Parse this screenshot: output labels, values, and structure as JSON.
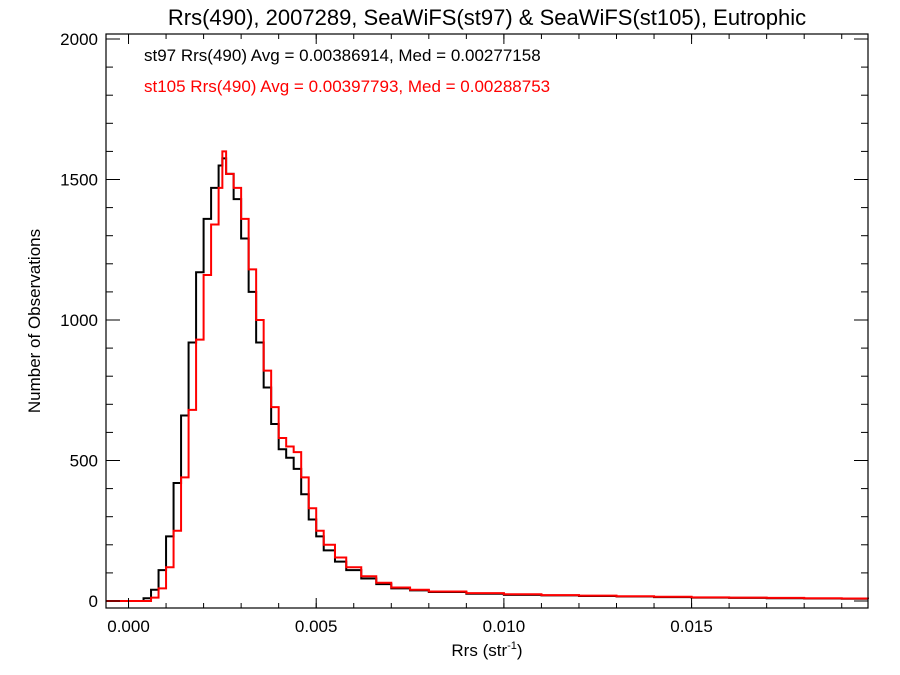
{
  "chart_data": {
    "type": "line",
    "step": true,
    "title": "Rrs(490), 2007289, SeaWiFS(st97) & SeaWiFS(st105), Eutrophic",
    "xlabel_main": "Rrs (str",
    "xlabel_sup": "-1",
    "xlabel_close": ")",
    "ylabel": "Number of Observations",
    "xlim": [
      -0.0006,
      0.0197
    ],
    "ylim": [
      0,
      2000
    ],
    "x_ticks": [
      0.0,
      0.005,
      0.01,
      0.015
    ],
    "x_tick_labels": [
      "0.000",
      "0.005",
      "0.010",
      "0.015"
    ],
    "y_ticks": [
      0,
      500,
      1000,
      1500,
      2000
    ],
    "y_tick_labels": [
      "0",
      "500",
      "1000",
      "1500",
      "2000"
    ],
    "grid": false,
    "legend_position": "top-left",
    "legend": [
      {
        "text": "st97 Rrs(490) Avg = 0.00386914, Med = 0.00277158",
        "color": "#000000"
      },
      {
        "text": "st105 Rrs(490) Avg = 0.00397793, Med = 0.00288753",
        "color": "#ff0000"
      }
    ],
    "series": [
      {
        "color": "#000000",
        "points": [
          [
            -0.0006,
            0
          ],
          [
            0.0,
            0
          ],
          [
            0.0004,
            10
          ],
          [
            0.0006,
            40
          ],
          [
            0.0008,
            110
          ],
          [
            0.001,
            230
          ],
          [
            0.0012,
            420
          ],
          [
            0.0014,
            660
          ],
          [
            0.0016,
            920
          ],
          [
            0.0018,
            1170
          ],
          [
            0.002,
            1360
          ],
          [
            0.0022,
            1470
          ],
          [
            0.0024,
            1550
          ],
          [
            0.0025,
            1575
          ],
          [
            0.0026,
            1520
          ],
          [
            0.0028,
            1430
          ],
          [
            0.003,
            1290
          ],
          [
            0.0032,
            1100
          ],
          [
            0.0034,
            920
          ],
          [
            0.0036,
            760
          ],
          [
            0.0038,
            630
          ],
          [
            0.004,
            540
          ],
          [
            0.0042,
            510
          ],
          [
            0.0044,
            470
          ],
          [
            0.0046,
            380
          ],
          [
            0.0048,
            290
          ],
          [
            0.005,
            230
          ],
          [
            0.0052,
            180
          ],
          [
            0.0055,
            140
          ],
          [
            0.0058,
            110
          ],
          [
            0.0062,
            80
          ],
          [
            0.0066,
            60
          ],
          [
            0.007,
            45
          ],
          [
            0.0075,
            38
          ],
          [
            0.008,
            32
          ],
          [
            0.009,
            26
          ],
          [
            0.01,
            22
          ],
          [
            0.011,
            20
          ],
          [
            0.012,
            18
          ],
          [
            0.013,
            16
          ],
          [
            0.014,
            14
          ],
          [
            0.015,
            12
          ],
          [
            0.016,
            11
          ],
          [
            0.017,
            10
          ],
          [
            0.018,
            9
          ],
          [
            0.019,
            8
          ],
          [
            0.0197,
            7
          ]
        ]
      },
      {
        "color": "#ff0000",
        "points": [
          [
            -0.0006,
            0
          ],
          [
            0.0002,
            0
          ],
          [
            0.0006,
            12
          ],
          [
            0.0008,
            45
          ],
          [
            0.001,
            120
          ],
          [
            0.0012,
            250
          ],
          [
            0.0014,
            440
          ],
          [
            0.0016,
            680
          ],
          [
            0.0018,
            930
          ],
          [
            0.002,
            1160
          ],
          [
            0.0022,
            1340
          ],
          [
            0.0024,
            1470
          ],
          [
            0.0025,
            1600
          ],
          [
            0.0026,
            1520
          ],
          [
            0.0028,
            1470
          ],
          [
            0.003,
            1360
          ],
          [
            0.0032,
            1180
          ],
          [
            0.0034,
            1000
          ],
          [
            0.0036,
            820
          ],
          [
            0.0038,
            690
          ],
          [
            0.004,
            580
          ],
          [
            0.0042,
            550
          ],
          [
            0.0044,
            530
          ],
          [
            0.0046,
            440
          ],
          [
            0.0048,
            330
          ],
          [
            0.005,
            250
          ],
          [
            0.0052,
            200
          ],
          [
            0.0055,
            155
          ],
          [
            0.0058,
            120
          ],
          [
            0.0062,
            88
          ],
          [
            0.0066,
            65
          ],
          [
            0.007,
            48
          ],
          [
            0.0075,
            40
          ],
          [
            0.008,
            34
          ],
          [
            0.009,
            28
          ],
          [
            0.01,
            24
          ],
          [
            0.011,
            21
          ],
          [
            0.012,
            19
          ],
          [
            0.013,
            17
          ],
          [
            0.014,
            15
          ],
          [
            0.015,
            13
          ],
          [
            0.016,
            12
          ],
          [
            0.017,
            11
          ],
          [
            0.018,
            10
          ],
          [
            0.019,
            9
          ],
          [
            0.0197,
            8
          ]
        ]
      }
    ]
  }
}
